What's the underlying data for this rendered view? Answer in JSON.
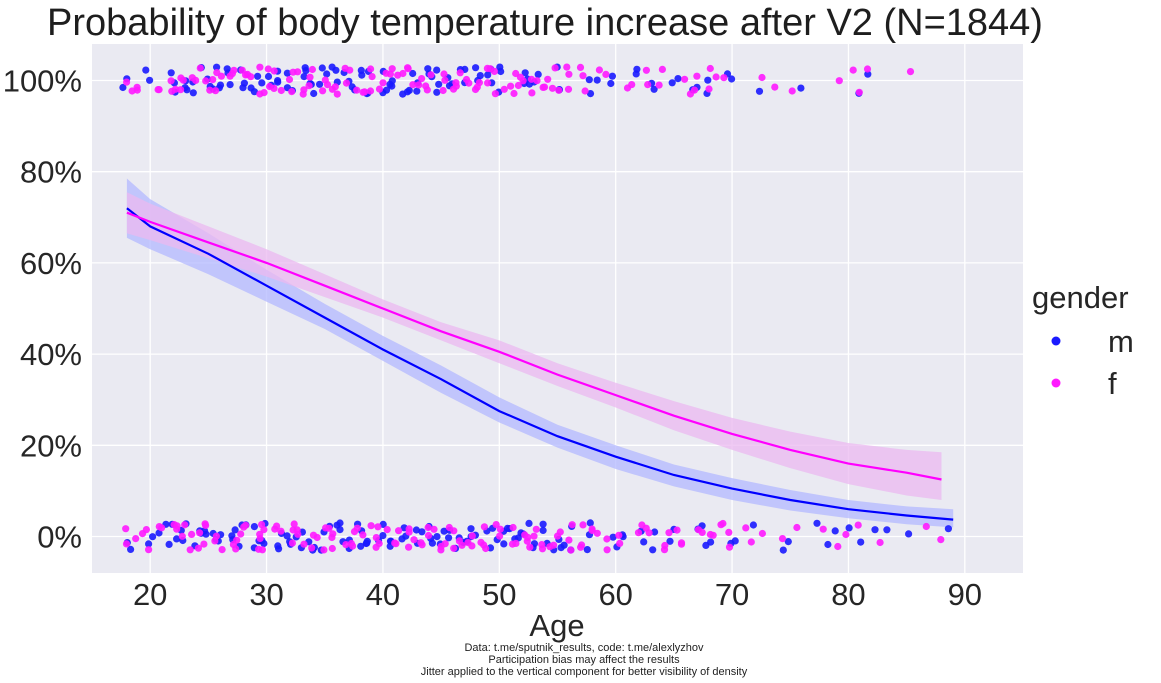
{
  "chart_data": {
    "type": "scatter",
    "title": "Probability of body temperature increase after V2 (N=1844)",
    "xlabel": "Age",
    "ylabel": "",
    "xlim": [
      15,
      95
    ],
    "ylim": [
      -0.08,
      1.08
    ],
    "x_ticks": [
      "20",
      "30",
      "40",
      "50",
      "60",
      "70",
      "80",
      "90"
    ],
    "y_ticks": [
      "0%",
      "20%",
      "40%",
      "60%",
      "80%",
      "100%"
    ],
    "grid": true,
    "legend_title": "gender",
    "legend_position": "right",
    "series": [
      {
        "name": "m",
        "color": "#1a1aff",
        "fit_line_color": "#0000ff",
        "band_color": "#b3b8ff",
        "age_range": [
          18,
          89
        ],
        "points_at_1": [
          18,
          20,
          22,
          23,
          24,
          25,
          26,
          27,
          28,
          29,
          30,
          31,
          32,
          33,
          34,
          35,
          36,
          37,
          38,
          39,
          40,
          41,
          42,
          43,
          44,
          45,
          46,
          47,
          48,
          49,
          50,
          52,
          53,
          55,
          58,
          60,
          62,
          63,
          65,
          67,
          68,
          70,
          72,
          76,
          81,
          82
        ],
        "points_at_0": [
          18,
          20,
          21,
          22,
          23,
          24,
          25,
          26,
          27,
          28,
          29,
          30,
          31,
          32,
          33,
          34,
          35,
          36,
          37,
          38,
          39,
          40,
          41,
          42,
          43,
          44,
          45,
          46,
          47,
          48,
          49,
          50,
          51,
          52,
          53,
          54,
          55,
          56,
          58,
          60,
          61,
          62,
          63,
          65,
          67,
          68,
          70,
          72,
          74,
          75,
          77,
          78,
          79,
          80,
          81,
          82,
          83,
          85,
          89
        ],
        "fit": {
          "x": [
            18,
            20,
            25,
            30,
            35,
            40,
            45,
            50,
            55,
            60,
            65,
            70,
            75,
            80,
            85,
            89
          ],
          "y": [
            0.72,
            0.68,
            0.62,
            0.55,
            0.48,
            0.41,
            0.345,
            0.275,
            0.22,
            0.175,
            0.135,
            0.105,
            0.08,
            0.06,
            0.046,
            0.037
          ],
          "lower": [
            0.655,
            0.63,
            0.575,
            0.515,
            0.455,
            0.385,
            0.315,
            0.25,
            0.195,
            0.148,
            0.11,
            0.08,
            0.057,
            0.04,
            0.027,
            0.02
          ],
          "upper": [
            0.785,
            0.74,
            0.665,
            0.585,
            0.51,
            0.44,
            0.375,
            0.305,
            0.245,
            0.2,
            0.158,
            0.128,
            0.102,
            0.08,
            0.066,
            0.06
          ]
        }
      },
      {
        "name": "f",
        "color": "#ff1aff",
        "fit_line_color": "#ff00ff",
        "band_color": "#ebb8f0",
        "age_range": [
          18,
          88
        ],
        "points_at_1": [
          18,
          19,
          21,
          22,
          23,
          24,
          25,
          26,
          27,
          28,
          29,
          30,
          31,
          32,
          33,
          34,
          35,
          36,
          37,
          38,
          39,
          40,
          41,
          42,
          43,
          44,
          45,
          46,
          47,
          48,
          49,
          50,
          51,
          52,
          53,
          54,
          55,
          56,
          57,
          59,
          61,
          63,
          64,
          66,
          67,
          68,
          69,
          73,
          74,
          75,
          79,
          80,
          81,
          82,
          85
        ],
        "points_at_0": [
          18,
          19,
          20,
          21,
          22,
          23,
          24,
          25,
          26,
          27,
          28,
          29,
          30,
          31,
          32,
          33,
          34,
          35,
          36,
          37,
          38,
          39,
          40,
          41,
          42,
          43,
          44,
          45,
          46,
          47,
          48,
          49,
          50,
          51,
          52,
          53,
          54,
          55,
          56,
          57,
          58,
          59,
          60,
          62,
          63,
          64,
          65,
          66,
          67,
          68,
          69,
          70,
          71,
          72,
          73,
          74,
          76,
          78,
          79,
          80,
          81,
          83,
          87,
          88
        ],
        "fit": {
          "x": [
            18,
            20,
            25,
            30,
            35,
            40,
            45,
            50,
            55,
            60,
            65,
            70,
            75,
            80,
            85,
            88
          ],
          "y": [
            0.71,
            0.69,
            0.645,
            0.6,
            0.55,
            0.5,
            0.45,
            0.405,
            0.355,
            0.31,
            0.265,
            0.225,
            0.19,
            0.16,
            0.14,
            0.125
          ],
          "lower": [
            0.665,
            0.65,
            0.61,
            0.57,
            0.525,
            0.48,
            0.43,
            0.38,
            0.33,
            0.283,
            0.233,
            0.19,
            0.15,
            0.115,
            0.09,
            0.08
          ],
          "upper": [
            0.755,
            0.73,
            0.68,
            0.63,
            0.575,
            0.52,
            0.47,
            0.43,
            0.38,
            0.337,
            0.297,
            0.26,
            0.23,
            0.205,
            0.19,
            0.185
          ]
        }
      }
    ],
    "footnotes": [
      "Data: t.me/sputnik_results, code: t.me/alexlyzhov",
      "Participation bias may affect the results",
      "Jitter applied to the vertical component for better visibility of density"
    ],
    "background_color": "#eaeaf2"
  }
}
